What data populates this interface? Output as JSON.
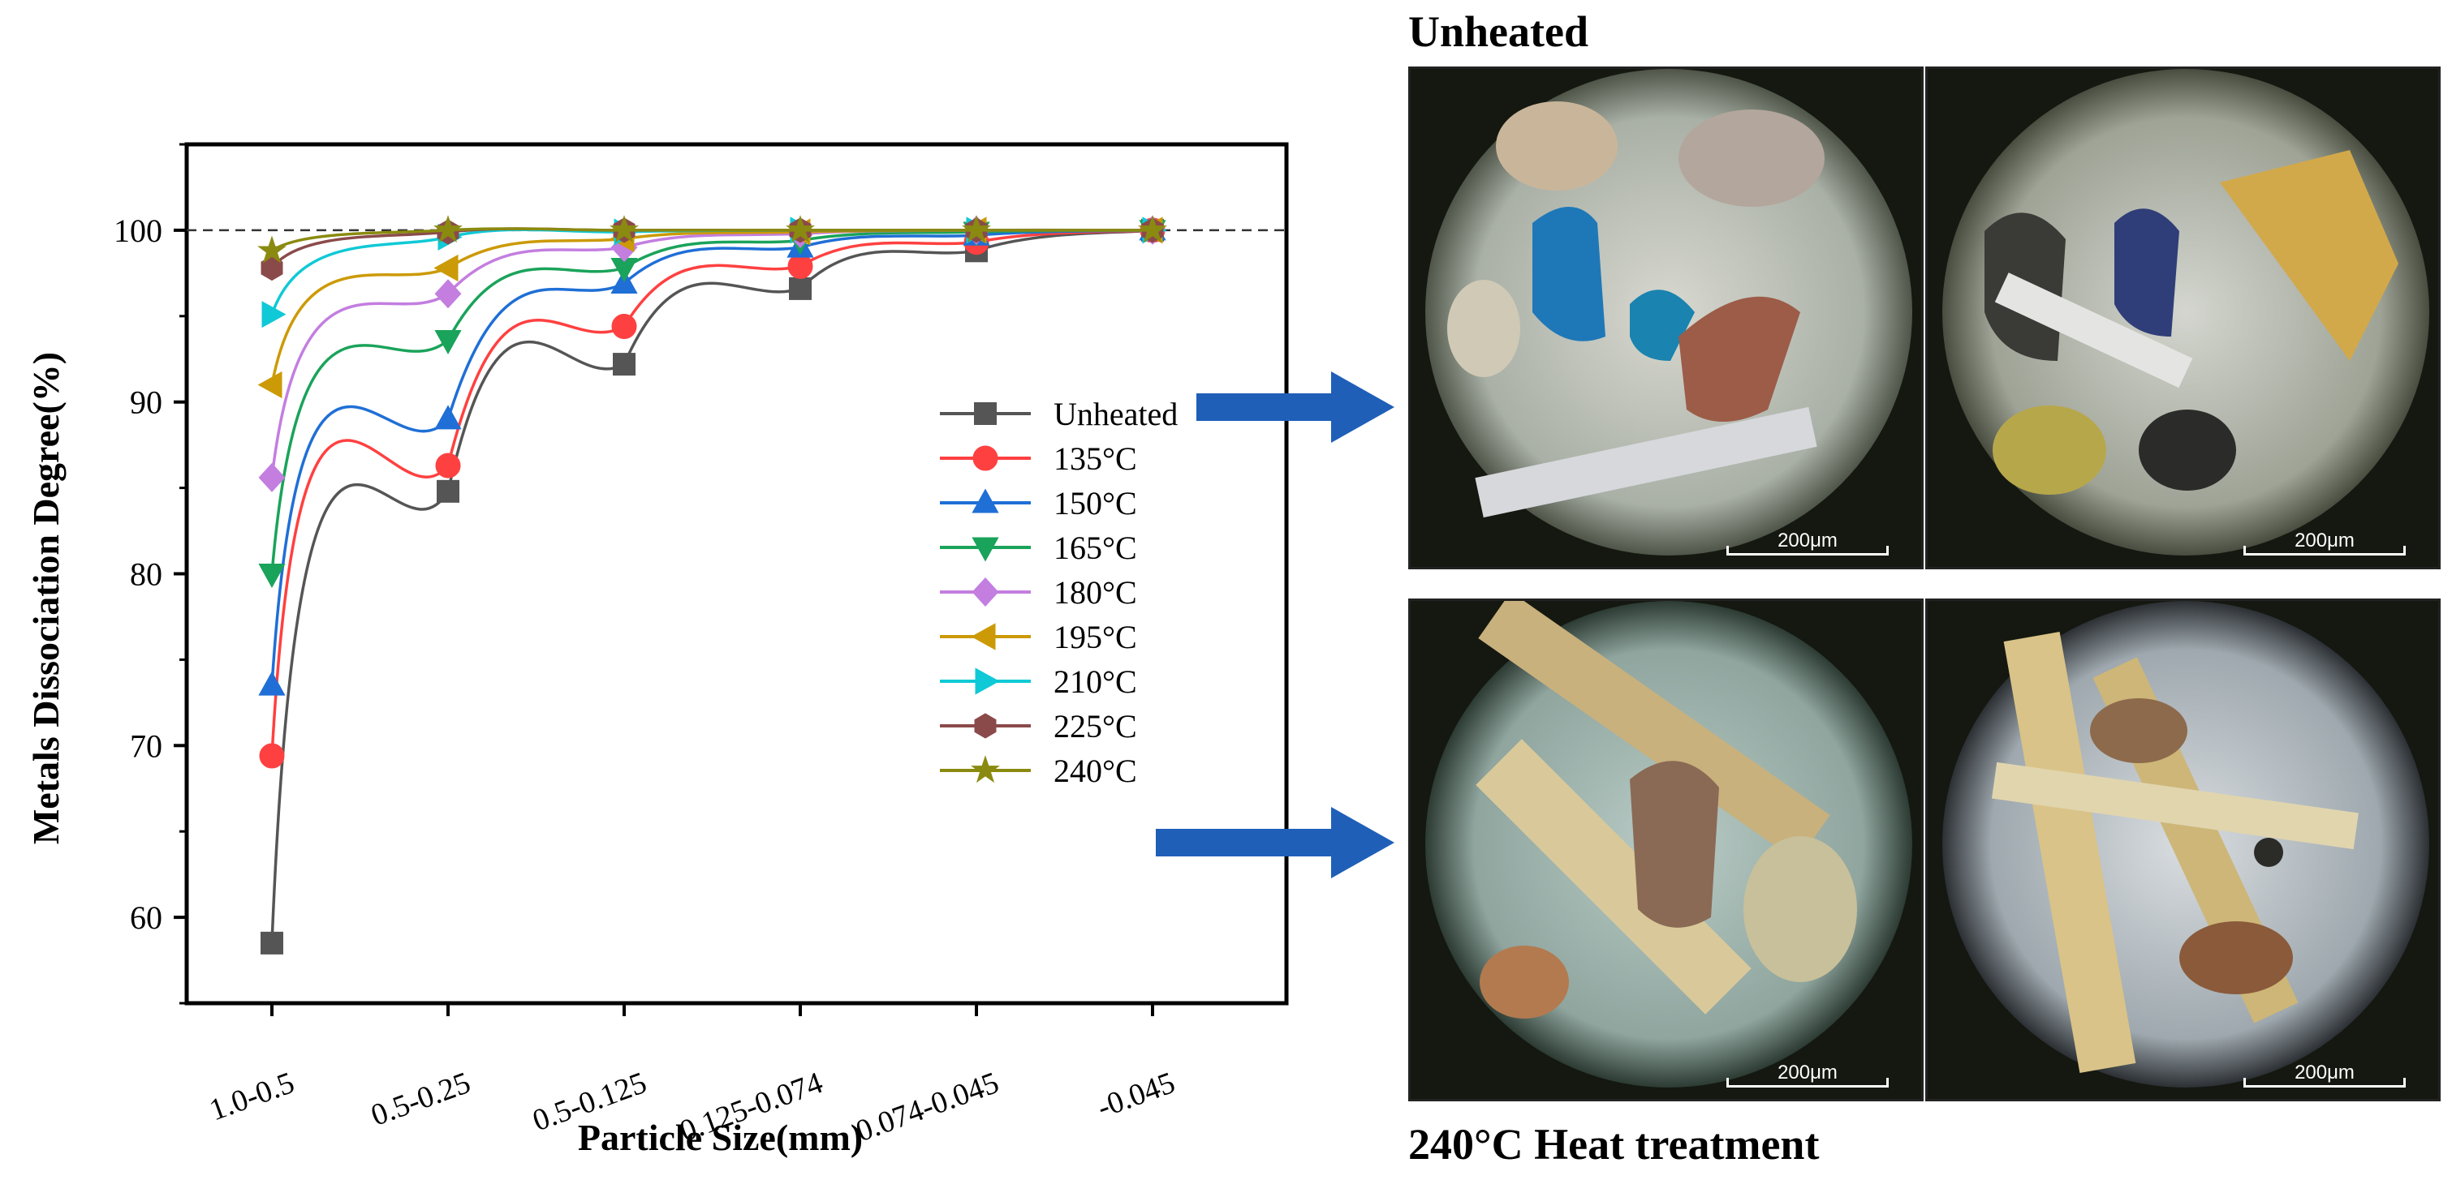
{
  "chart_data": {
    "type": "line",
    "title": "",
    "xlabel": "Particle Size(mm)",
    "ylabel": "Metals Dissociation Degree(%)",
    "categories": [
      "1.0-0.5",
      "0.5-0.25",
      "0.5-0.125",
      "0.125-0.074",
      "0.074-0.045",
      "-0.045"
    ],
    "ylim": [
      55,
      105
    ],
    "yticks": [
      60,
      70,
      80,
      90,
      100
    ],
    "reference_line": 100,
    "legend_position": "center-right",
    "series": [
      {
        "name": "Unheated",
        "color": "#555555",
        "marker": "square",
        "values": [
          58.5,
          84.8,
          92.2,
          96.6,
          98.8,
          100
        ]
      },
      {
        "name": "135°C",
        "color": "#ff4040",
        "marker": "circle",
        "values": [
          69.4,
          86.3,
          94.4,
          97.9,
          99.3,
          100
        ]
      },
      {
        "name": "150°C",
        "color": "#1f6fd6",
        "marker": "triangle-up",
        "values": [
          73.5,
          89.0,
          96.9,
          99.0,
          99.7,
          100
        ]
      },
      {
        "name": "165°C",
        "color": "#1aa35a",
        "marker": "triangle-down",
        "values": [
          80.0,
          93.6,
          97.8,
          99.4,
          99.9,
          100
        ]
      },
      {
        "name": "180°C",
        "color": "#c37ee0",
        "marker": "diamond",
        "values": [
          85.6,
          96.3,
          99.0,
          99.8,
          100,
          100
        ]
      },
      {
        "name": "195°C",
        "color": "#cc9a06",
        "marker": "triangle-left",
        "values": [
          91.0,
          97.8,
          99.5,
          99.9,
          100,
          100
        ]
      },
      {
        "name": "210°C",
        "color": "#10c9d6",
        "marker": "triangle-right",
        "values": [
          95.1,
          99.6,
          99.9,
          100,
          100,
          100
        ]
      },
      {
        "name": "225°C",
        "color": "#8b4a4a",
        "marker": "hexagon",
        "values": [
          97.8,
          99.9,
          100,
          100,
          100,
          100
        ]
      },
      {
        "name": "240°C",
        "color": "#8a8a10",
        "marker": "star",
        "values": [
          98.8,
          100,
          100,
          100,
          100,
          100
        ]
      }
    ]
  },
  "images": {
    "top_label": "Unheated",
    "bottom_label": "240°C Heat treatment",
    "scale_bar": "200μm",
    "panels": [
      {
        "name": "unheated-micrograph-1",
        "group": "Unheated"
      },
      {
        "name": "unheated-micrograph-2",
        "group": "Unheated"
      },
      {
        "name": "heated-micrograph-1",
        "group": "240°C Heat treatment"
      },
      {
        "name": "heated-micrograph-2",
        "group": "240°C Heat treatment"
      }
    ]
  },
  "colors": {
    "arrow": "#1f5fb8",
    "axis": "#000000",
    "background": "#ffffff"
  }
}
